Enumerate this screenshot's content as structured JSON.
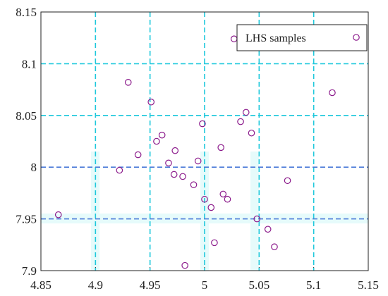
{
  "chart_data": {
    "type": "scatter",
    "series": [
      {
        "name": "LHS samples",
        "color": "#8b1a8b",
        "x": [
          4.866,
          4.93,
          4.951,
          4.922,
          4.939,
          4.956,
          4.961,
          4.973,
          4.967,
          4.972,
          4.98,
          4.99,
          4.994,
          4.998,
          5.0,
          5.006,
          5.009,
          4.982,
          5.015,
          5.017,
          5.021,
          5.027,
          5.033,
          5.038,
          5.043,
          5.048,
          5.058,
          5.064,
          5.076,
          5.117
        ],
        "values": [
          7.954,
          8.082,
          8.063,
          7.997,
          8.012,
          8.025,
          8.031,
          8.016,
          8.004,
          7.993,
          7.991,
          7.983,
          8.006,
          8.042,
          7.969,
          7.961,
          7.927,
          7.905,
          8.019,
          7.974,
          7.969,
          8.124,
          8.044,
          8.053,
          8.033,
          7.95,
          7.94,
          7.923,
          7.987,
          8.072
        ]
      }
    ],
    "xlim": [
      4.85,
      5.15
    ],
    "xticks": [
      4.85,
      4.9,
      4.95,
      5,
      5.05,
      5.1,
      5.15
    ],
    "ylim": [
      7.9,
      8.15
    ],
    "yticks": [
      7.9,
      7.95,
      8,
      8.05,
      8.1,
      8.15
    ],
    "grid": true,
    "grid_color": "#1ec8dc",
    "legend": "upper right"
  }
}
